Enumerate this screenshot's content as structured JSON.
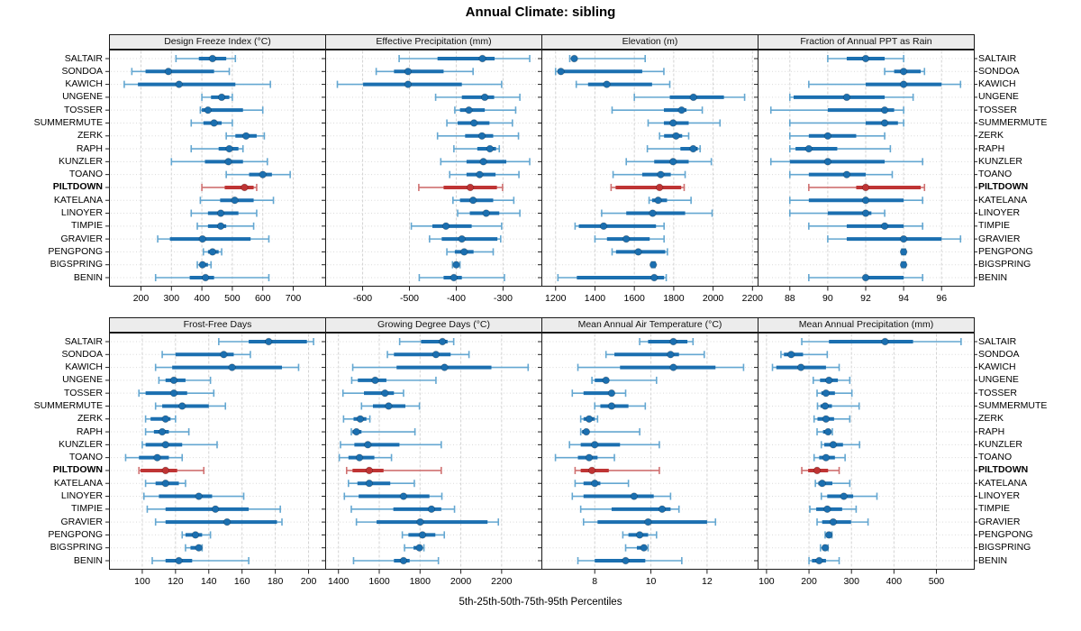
{
  "title": "Annual Climate: sibling",
  "caption": "5th-25th-50th-75th-95th Percentiles",
  "percentile_labels": [
    "5th",
    "25th",
    "50th",
    "75th",
    "95th"
  ],
  "sites": [
    "SALTAIR",
    "SONDOA",
    "KAWICH",
    "UNGENE",
    "TOSSER",
    "SUMMERMUTE",
    "ZERK",
    "RAPH",
    "KUNZLER",
    "TOANO",
    "PILTDOWN",
    "KATELANA",
    "LINOYER",
    "TIMPIE",
    "GRAVIER",
    "PENGPONG",
    "BIGSPRING",
    "BENIN"
  ],
  "highlight_site": "PILTDOWN",
  "colors": {
    "blue": "#1b6fb0",
    "blue_light": "#64a7d1",
    "red": "#bf3434",
    "red_light": "#cf7070",
    "strip_bg": "#ececec",
    "panel_border": "#1a1a1a",
    "grid_vertical": "#d3d3d3",
    "row_guide": "#dadada"
  },
  "chart_data": [
    {
      "type": "interval",
      "note": "horizontal 5-25-50-75-95 percentile intervals per site; thin line 5th-95th with end caps, thick line 25th-75th, dot at median",
      "title": "Design Freeze Index (°C)",
      "row": "top",
      "xlim": [
        95,
        805
      ],
      "ticks": [
        200,
        300,
        400,
        500,
        600,
        700
      ],
      "values": [
        [
          315,
          390,
          435,
          480,
          510
        ],
        [
          170,
          215,
          290,
          440,
          490
        ],
        [
          145,
          190,
          325,
          510,
          625
        ],
        [
          400,
          430,
          465,
          490,
          500
        ],
        [
          395,
          400,
          420,
          535,
          600
        ],
        [
          365,
          405,
          440,
          465,
          500
        ],
        [
          480,
          510,
          545,
          580,
          605
        ],
        [
          365,
          455,
          490,
          520,
          535
        ],
        [
          300,
          410,
          487,
          535,
          615
        ],
        [
          480,
          555,
          600,
          630,
          690
        ],
        [
          400,
          475,
          540,
          570,
          580
        ],
        [
          395,
          460,
          508,
          570,
          635
        ],
        [
          365,
          420,
          462,
          520,
          580
        ],
        [
          385,
          420,
          462,
          480,
          570
        ],
        [
          255,
          295,
          402,
          560,
          620
        ],
        [
          405,
          420,
          435,
          455,
          465
        ],
        [
          385,
          395,
          402,
          420,
          430
        ],
        [
          248,
          360,
          412,
          440,
          620
        ]
      ]
    },
    {
      "type": "interval",
      "title": "Effective Precipitation (mm)",
      "row": "top",
      "xlim": [
        -680,
        -218
      ],
      "ticks": [
        -600,
        -500,
        -400,
        -300
      ],
      "values": [
        [
          -522,
          -440,
          -344,
          -318,
          -243
        ],
        [
          -571,
          -533,
          -503,
          -427,
          -364
        ],
        [
          -654,
          -599,
          -503,
          -388,
          -303
        ],
        [
          -444,
          -388,
          -339,
          -319,
          -264
        ],
        [
          -403,
          -392,
          -373,
          -339,
          -273
        ],
        [
          -420,
          -397,
          -362,
          -329,
          -280
        ],
        [
          -440,
          -381,
          -345,
          -321,
          -267
        ],
        [
          -405,
          -355,
          -328,
          -315,
          -308
        ],
        [
          -433,
          -378,
          -342,
          -293,
          -243
        ],
        [
          -414,
          -378,
          -350,
          -316,
          -266
        ],
        [
          -480,
          -427,
          -370,
          -313,
          -301
        ],
        [
          -407,
          -392,
          -364,
          -321,
          -277
        ],
        [
          -397,
          -371,
          -336,
          -308,
          -264
        ],
        [
          -496,
          -451,
          -422,
          -367,
          -303
        ],
        [
          -457,
          -431,
          -388,
          -312,
          -305
        ],
        [
          -420,
          -403,
          -383,
          -363,
          -321
        ],
        [
          -408,
          -402,
          -400,
          -396,
          -392
        ],
        [
          -479,
          -427,
          -405,
          -388,
          -297
        ]
      ]
    },
    {
      "type": "interval",
      "title": "Elevation (m)",
      "row": "top",
      "xlim": [
        1128,
        2226
      ],
      "ticks": [
        1200,
        1400,
        1600,
        1800,
        2000,
        2200
      ],
      "values": [
        [
          1272,
          1283,
          1295,
          1310,
          1655
        ],
        [
          1200,
          1210,
          1227,
          1640,
          1750
        ],
        [
          1305,
          1365,
          1460,
          1690,
          1780
        ],
        [
          1600,
          1780,
          1900,
          2055,
          2160
        ],
        [
          1487,
          1750,
          1840,
          1865,
          1945
        ],
        [
          1670,
          1750,
          1797,
          1876,
          2035
        ],
        [
          1728,
          1751,
          1812,
          1843,
          1876
        ],
        [
          1666,
          1834,
          1899,
          1922,
          1934
        ],
        [
          1559,
          1701,
          1797,
          1876,
          1991
        ],
        [
          1492,
          1640,
          1734,
          1785,
          1858
        ],
        [
          1482,
          1505,
          1728,
          1838,
          1853
        ],
        [
          1675,
          1690,
          1721,
          1766,
          1888
        ],
        [
          1434,
          1559,
          1693,
          1858,
          1995
        ],
        [
          1299,
          1318,
          1444,
          1710,
          1751
        ],
        [
          1400,
          1461,
          1559,
          1678,
          1751
        ],
        [
          1487,
          1507,
          1620,
          1757,
          1768
        ],
        [
          1688,
          1692,
          1696,
          1700,
          1705
        ],
        [
          1212,
          1308,
          1701,
          1751,
          1762
        ]
      ]
    },
    {
      "type": "interval",
      "title": "Fraction of Annual PPT as Rain",
      "row": "top",
      "xlim": [
        86.3,
        97.7
      ],
      "ticks": [
        88,
        90,
        92,
        94,
        96
      ],
      "values": [
        [
          90,
          91,
          92,
          93,
          94
        ],
        [
          93,
          93.5,
          94,
          94.9,
          95.1
        ],
        [
          89,
          92,
          94,
          96,
          97
        ],
        [
          88,
          88.2,
          91,
          93,
          94.5
        ],
        [
          87,
          90,
          93,
          93.5,
          94
        ],
        [
          88,
          92,
          93,
          93.7,
          94
        ],
        [
          88,
          89,
          90,
          91.5,
          93
        ],
        [
          88,
          88.3,
          89,
          90.5,
          93.3
        ],
        [
          87,
          88,
          90,
          93,
          95
        ],
        [
          88,
          89,
          91,
          92,
          93.4
        ],
        [
          89,
          91.5,
          92,
          94.9,
          95.1
        ],
        [
          88,
          89,
          92,
          94,
          95
        ],
        [
          88,
          90,
          92,
          92.3,
          93
        ],
        [
          89,
          91,
          93,
          94,
          95
        ],
        [
          90,
          91,
          94,
          96,
          97
        ],
        [
          93.9,
          93.97,
          94,
          94.03,
          94.1
        ],
        [
          93.9,
          93.97,
          94,
          94.03,
          94.1
        ],
        [
          89,
          91.9,
          92,
          94,
          95
        ]
      ]
    },
    {
      "type": "interval",
      "title": "Frost-Free Days",
      "row": "bottom",
      "xlim": [
        80,
        210
      ],
      "ticks": [
        100,
        120,
        140,
        160,
        180,
        200
      ],
      "values": [
        [
          146,
          164,
          176,
          199,
          203
        ],
        [
          112,
          120,
          149,
          155,
          165
        ],
        [
          108,
          118,
          154,
          184,
          194
        ],
        [
          110,
          114,
          119,
          126,
          141
        ],
        [
          98,
          102,
          119,
          127,
          143
        ],
        [
          108,
          112,
          124,
          140,
          150
        ],
        [
          102,
          105,
          114,
          117,
          120
        ],
        [
          102,
          107,
          112,
          116,
          128
        ],
        [
          100,
          102,
          114,
          124,
          145
        ],
        [
          90,
          98,
          109,
          116,
          124
        ],
        [
          98,
          99,
          114,
          121,
          137
        ],
        [
          102,
          108,
          114,
          122,
          126
        ],
        [
          101,
          110,
          134,
          142,
          161
        ],
        [
          103,
          114,
          144,
          164,
          183
        ],
        [
          108,
          114,
          151,
          181,
          184
        ],
        [
          124,
          126,
          132,
          136,
          141
        ],
        [
          126,
          129,
          134,
          135,
          136
        ],
        [
          106,
          114,
          122,
          130,
          164
        ]
      ]
    },
    {
      "type": "interval",
      "title": "Growing Degree Days (°C)",
      "row": "bottom",
      "xlim": [
        1335,
        2395
      ],
      "ticks": [
        1400,
        1600,
        1800,
        2000,
        2200
      ],
      "values": [
        [
          1700,
          1805,
          1910,
          1935,
          1965
        ],
        [
          1640,
          1672,
          1878,
          1950,
          2040
        ],
        [
          1470,
          1685,
          1920,
          2150,
          2330
        ],
        [
          1465,
          1495,
          1580,
          1635,
          1878
        ],
        [
          1422,
          1525,
          1628,
          1672,
          1719
        ],
        [
          1513,
          1569,
          1646,
          1728,
          1797
        ],
        [
          1425,
          1474,
          1507,
          1537,
          1554
        ],
        [
          1463,
          1469,
          1488,
          1513,
          1775
        ],
        [
          1410,
          1478,
          1544,
          1699,
          1904
        ],
        [
          1404,
          1449,
          1503,
          1576,
          1660
        ],
        [
          1440,
          1469,
          1551,
          1621,
          1904
        ],
        [
          1449,
          1493,
          1551,
          1654,
          1772
        ],
        [
          1429,
          1499,
          1719,
          1846,
          1907
        ],
        [
          1463,
          1669,
          1856,
          1904,
          1969
        ],
        [
          1488,
          1587,
          1801,
          2131,
          2184
        ],
        [
          1713,
          1743,
          1812,
          1875,
          1919
        ],
        [
          1724,
          1768,
          1797,
          1807,
          1819
        ],
        [
          1474,
          1672,
          1719,
          1749,
          1890
        ]
      ]
    },
    {
      "type": "interval",
      "title": "Mean Annual Air Temperature (°C)",
      "row": "bottom",
      "xlim": [
        6.1,
        13.8
      ],
      "ticks": [
        8,
        10,
        12
      ],
      "values": [
        [
          9.6,
          9.9,
          10.8,
          11.3,
          11.5
        ],
        [
          8.4,
          8.7,
          10.7,
          11.0,
          11.9
        ],
        [
          7.4,
          8.9,
          10.8,
          12.3,
          13.3
        ],
        [
          7.9,
          8.0,
          8.4,
          8.5,
          10.2
        ],
        [
          7.2,
          7.6,
          8.6,
          8.7,
          9.1
        ],
        [
          8.0,
          8.2,
          8.6,
          9.2,
          9.8
        ],
        [
          7.5,
          7.6,
          7.8,
          8.0,
          8.1
        ],
        [
          7.5,
          7.55,
          7.7,
          7.8,
          9.6
        ],
        [
          7.1,
          7.5,
          8.0,
          8.9,
          10.3
        ],
        [
          6.6,
          7.4,
          7.8,
          8.1,
          8.7
        ],
        [
          7.3,
          7.5,
          7.9,
          8.5,
          10.3
        ],
        [
          7.3,
          7.6,
          8.0,
          8.2,
          9.2
        ],
        [
          7.2,
          7.6,
          9.4,
          10.1,
          10.7
        ],
        [
          7.5,
          8.6,
          10.4,
          10.7,
          11.0
        ],
        [
          7.6,
          8.1,
          9.9,
          12.0,
          12.3
        ],
        [
          9.0,
          9.2,
          9.6,
          9.9,
          10.2
        ],
        [
          9.1,
          9.5,
          9.75,
          9.82,
          9.9
        ],
        [
          7.4,
          8.0,
          9.1,
          9.8,
          11.1
        ]
      ]
    },
    {
      "type": "interval",
      "title": "Mean Annual Precipitation (mm)",
      "row": "bottom",
      "xlim": [
        79,
        588
      ],
      "ticks": [
        100,
        200,
        300,
        400,
        500
      ],
      "values": [
        [
          183,
          247,
          379,
          445,
          558
        ],
        [
          134,
          141,
          158,
          186,
          243
        ],
        [
          114,
          123,
          181,
          240,
          271
        ],
        [
          210,
          226,
          247,
          268,
          296
        ],
        [
          219,
          229,
          240,
          261,
          301
        ],
        [
          220,
          227,
          238,
          254,
          318
        ],
        [
          212,
          220,
          240,
          259,
          296
        ],
        [
          219,
          233,
          245,
          252,
          255
        ],
        [
          229,
          236,
          257,
          280,
          319
        ],
        [
          212,
          224,
          240,
          261,
          285
        ],
        [
          183,
          198,
          219,
          245,
          271
        ],
        [
          215,
          222,
          231,
          255,
          296
        ],
        [
          229,
          243,
          282,
          304,
          360
        ],
        [
          202,
          217,
          243,
          278,
          311
        ],
        [
          219,
          231,
          257,
          299,
          339
        ],
        [
          238,
          241,
          247,
          250,
          254
        ],
        [
          227,
          233,
          238,
          240,
          245
        ],
        [
          200,
          207,
          224,
          240,
          271
        ]
      ]
    }
  ]
}
